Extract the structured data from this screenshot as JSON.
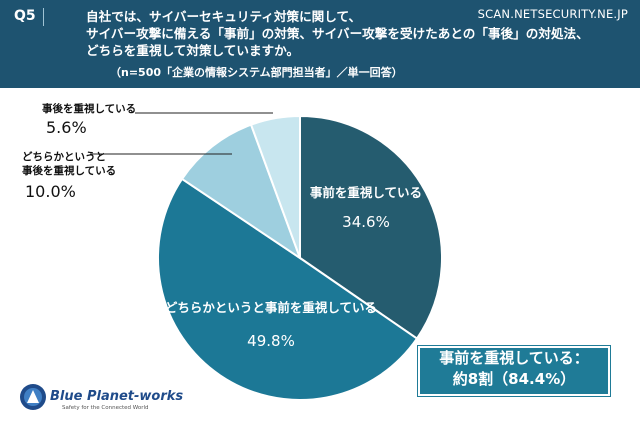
{
  "header": {
    "question_number": "Q5",
    "question_lines": [
      "自社では、サイバーセキュリティ対策に関して、",
      "サイバー攻撃に備える「事前」の対策、サイバー攻撃を受けたあとの「事後」の対処法、",
      "どちらを重視して対策していますか。"
    ],
    "note": "（n=500「企業の情報システム部門担当者」／単一回答）",
    "site": "SCAN.NETSECURITY.NE.JP"
  },
  "chart_data": {
    "type": "pie",
    "slices": [
      {
        "name": "事前を重視している",
        "value": 34.6,
        "label": "34.6%",
        "color": "#255c6f"
      },
      {
        "name": "どちらかというと事前を重視している",
        "value": 49.8,
        "label": "49.8%",
        "color": "#1c7896"
      },
      {
        "name": "どちらかというと事後を重視している",
        "value": 10.0,
        "label": "10.0%",
        "color": "#9ecfdf"
      },
      {
        "name": "事後を重視している",
        "value": 5.6,
        "label": "5.6%",
        "color": "#c8e6ef"
      }
    ],
    "start": "12 o'clock",
    "direction": "clockwise"
  },
  "callouts": {
    "after_strong_name": "事後を重視している",
    "after_strong_value": "5.6%",
    "after_lean_name_1": "どちらかというと",
    "after_lean_name_2": "事後を重視している",
    "after_lean_value": "10.0%"
  },
  "summary": {
    "line1": "事前を重視している：",
    "line2": "約8割（84.4%）"
  },
  "logo": {
    "name": "Blue Planet-works",
    "tagline": "Safety for the Connected World"
  }
}
